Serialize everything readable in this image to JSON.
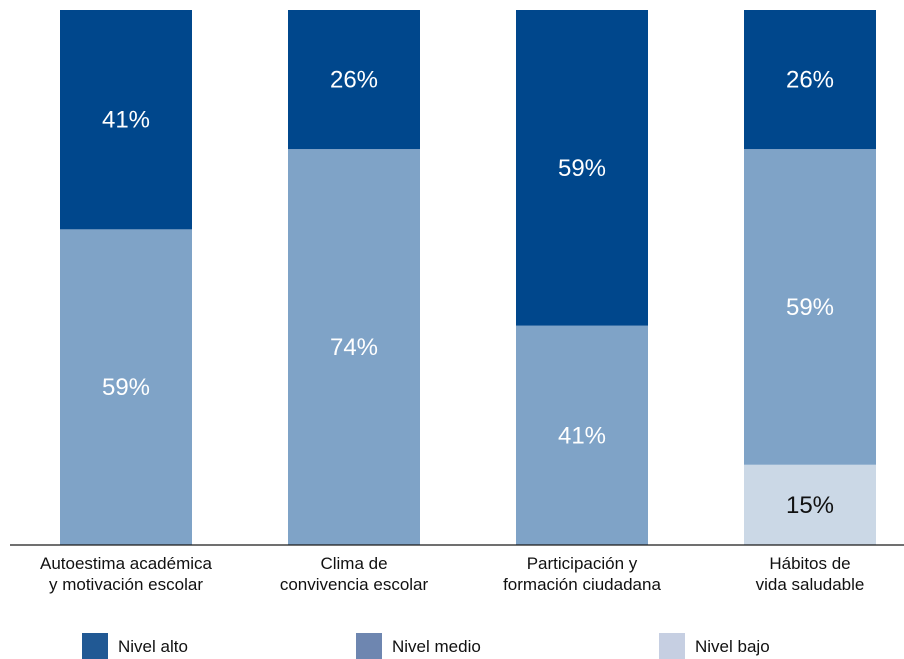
{
  "chart_data": {
    "type": "bar",
    "stacked": true,
    "normalized": true,
    "categories": [
      [
        "Autoestima académica",
        "y motivación escolar"
      ],
      [
        "Clima de",
        "convivencia escolar"
      ],
      [
        "Participación y",
        "formación ciudadana"
      ],
      [
        "Hábitos de",
        "vida saludable"
      ]
    ],
    "series": [
      {
        "name": "Nivel bajo",
        "color": "#cbd8e6",
        "label_color": "#111111",
        "values": [
          0,
          0,
          0,
          15
        ]
      },
      {
        "name": "Nivel medio",
        "color": "#7fa3c7",
        "label_color": "#ffffff",
        "values": [
          59,
          74,
          41,
          59
        ]
      },
      {
        "name": "Nivel alto",
        "color": "#00478c",
        "label_color": "#ffffff",
        "values": [
          41,
          26,
          59,
          26
        ]
      }
    ],
    "value_suffix": "%",
    "ylim": [
      0,
      100
    ],
    "grid": false,
    "legend": {
      "position": "bottom",
      "entries": [
        {
          "name": "Nivel alto",
          "swatch": "#215994"
        },
        {
          "name": "Nivel medio",
          "swatch": "#6e86b0"
        },
        {
          "name": "Nivel bajo",
          "swatch": "#c6cfe2"
        }
      ]
    }
  }
}
